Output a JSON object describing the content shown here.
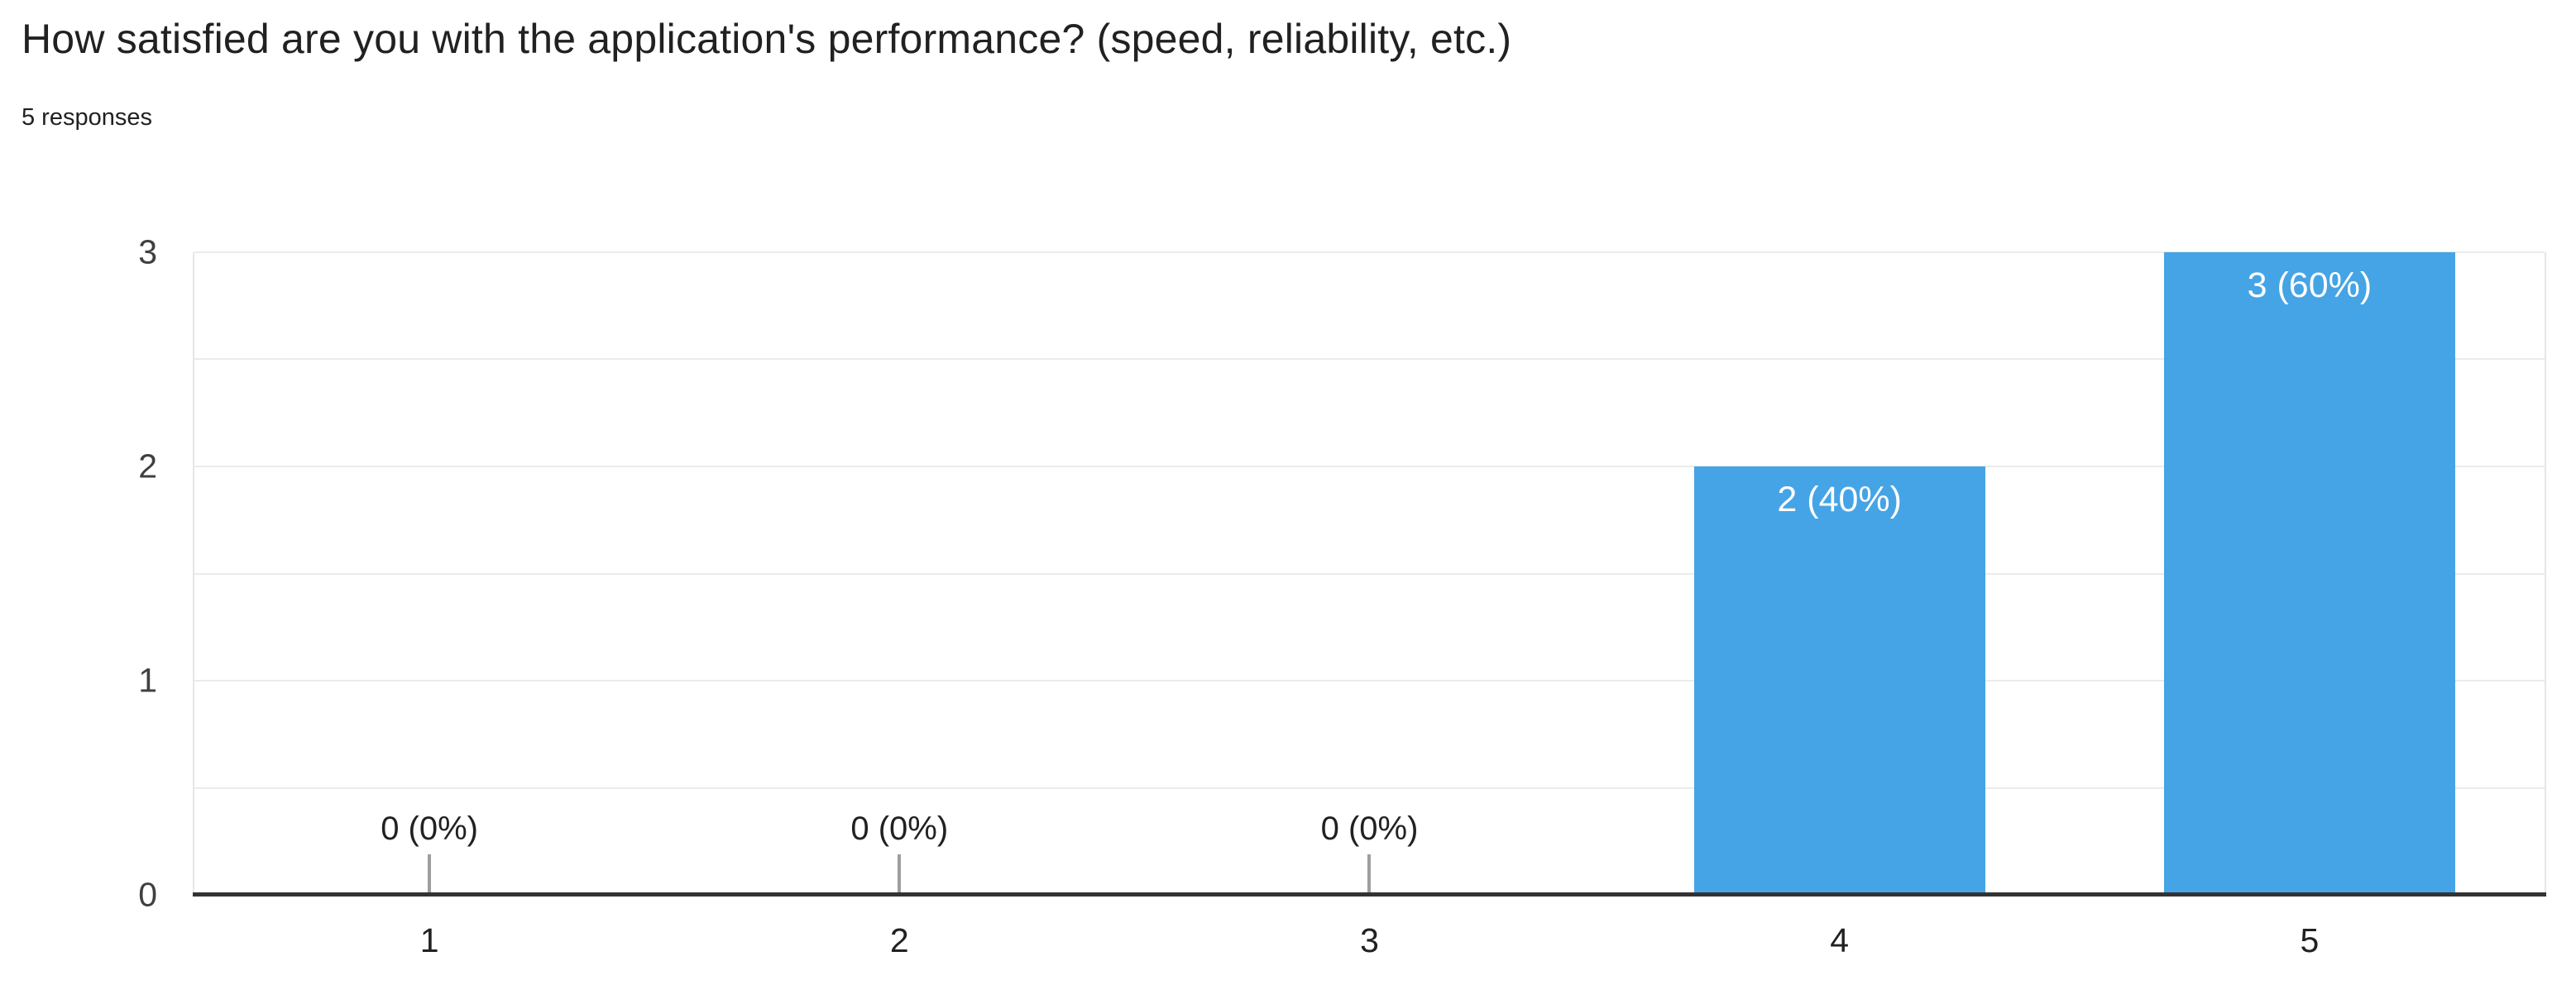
{
  "chart_data": {
    "type": "bar",
    "title": "How satisfied are you with the application's performance? (speed, reliability, etc.)",
    "subtitle": "5 responses",
    "categories": [
      "1",
      "2",
      "3",
      "4",
      "5"
    ],
    "values": [
      0,
      0,
      0,
      2,
      3
    ],
    "bar_labels": [
      "0 (0%)",
      "0 (0%)",
      "0 (0%)",
      "2 (40%)",
      "3 (60%)"
    ],
    "xlabel": "",
    "ylabel": "",
    "ylim": [
      0,
      3
    ],
    "yticks": [
      0,
      1,
      2,
      3
    ],
    "minor_gridline_step": 0.5,
    "grid": true,
    "legend": "none",
    "colors": {
      "bar": "#45a4e5",
      "bar_label_text": "#ffffff",
      "annotation_text": "#212121",
      "annotation_stem": "#9e9e9e",
      "axis_line": "#333333",
      "gridline": "#ebebeb",
      "plot_border": "#e6e6e6",
      "tick_label": "#404040",
      "title_text": "#212121"
    }
  }
}
